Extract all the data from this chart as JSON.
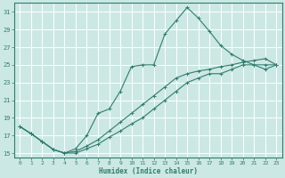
{
  "xlabel": "Humidex (Indice chaleur)",
  "bg_color": "#cce8e4",
  "grid_color": "#ffffff",
  "line_color": "#2e7d6e",
  "xlim_min": -0.5,
  "xlim_max": 23.5,
  "ylim_min": 14.5,
  "ylim_max": 32.0,
  "xticks": [
    0,
    1,
    2,
    3,
    4,
    5,
    6,
    7,
    8,
    9,
    10,
    11,
    12,
    13,
    14,
    15,
    16,
    17,
    18,
    19,
    20,
    21,
    22,
    23
  ],
  "yticks": [
    15,
    17,
    19,
    21,
    23,
    25,
    27,
    29,
    31
  ],
  "line1_x": [
    0,
    1,
    2,
    3,
    4,
    5,
    6,
    7,
    8,
    9,
    10,
    11,
    12,
    13,
    14,
    15,
    16,
    17,
    18,
    19,
    20,
    21,
    22,
    23
  ],
  "line1_y": [
    18.0,
    17.2,
    16.3,
    15.4,
    15.0,
    15.0,
    15.5,
    16.0,
    16.8,
    17.5,
    18.3,
    19.0,
    20.0,
    21.0,
    22.0,
    23.0,
    23.5,
    24.0,
    24.0,
    24.5,
    25.0,
    25.0,
    25.0,
    25.0
  ],
  "line2_x": [
    0,
    1,
    2,
    3,
    4,
    5,
    6,
    7,
    8,
    9,
    10,
    11,
    12,
    13,
    14,
    15,
    16,
    17,
    18,
    19,
    20,
    21,
    22,
    23
  ],
  "line2_y": [
    18.0,
    17.2,
    16.3,
    15.4,
    15.0,
    15.5,
    17.0,
    19.5,
    20.0,
    22.0,
    24.8,
    25.0,
    25.0,
    28.5,
    30.0,
    31.5,
    30.3,
    28.8,
    27.2,
    26.2,
    25.5,
    25.0,
    24.5,
    25.0
  ],
  "line3_x": [
    0,
    1,
    2,
    3,
    4,
    5,
    6,
    7,
    8,
    9,
    10,
    11,
    12,
    13,
    14,
    15,
    16,
    17,
    18,
    19,
    20,
    21,
    22,
    23
  ],
  "line3_y": [
    18.0,
    17.2,
    16.3,
    15.4,
    15.0,
    15.2,
    15.8,
    16.5,
    17.5,
    18.5,
    19.5,
    20.5,
    21.5,
    22.5,
    23.5,
    24.0,
    24.3,
    24.5,
    24.8,
    25.0,
    25.3,
    25.5,
    25.7,
    25.0
  ]
}
